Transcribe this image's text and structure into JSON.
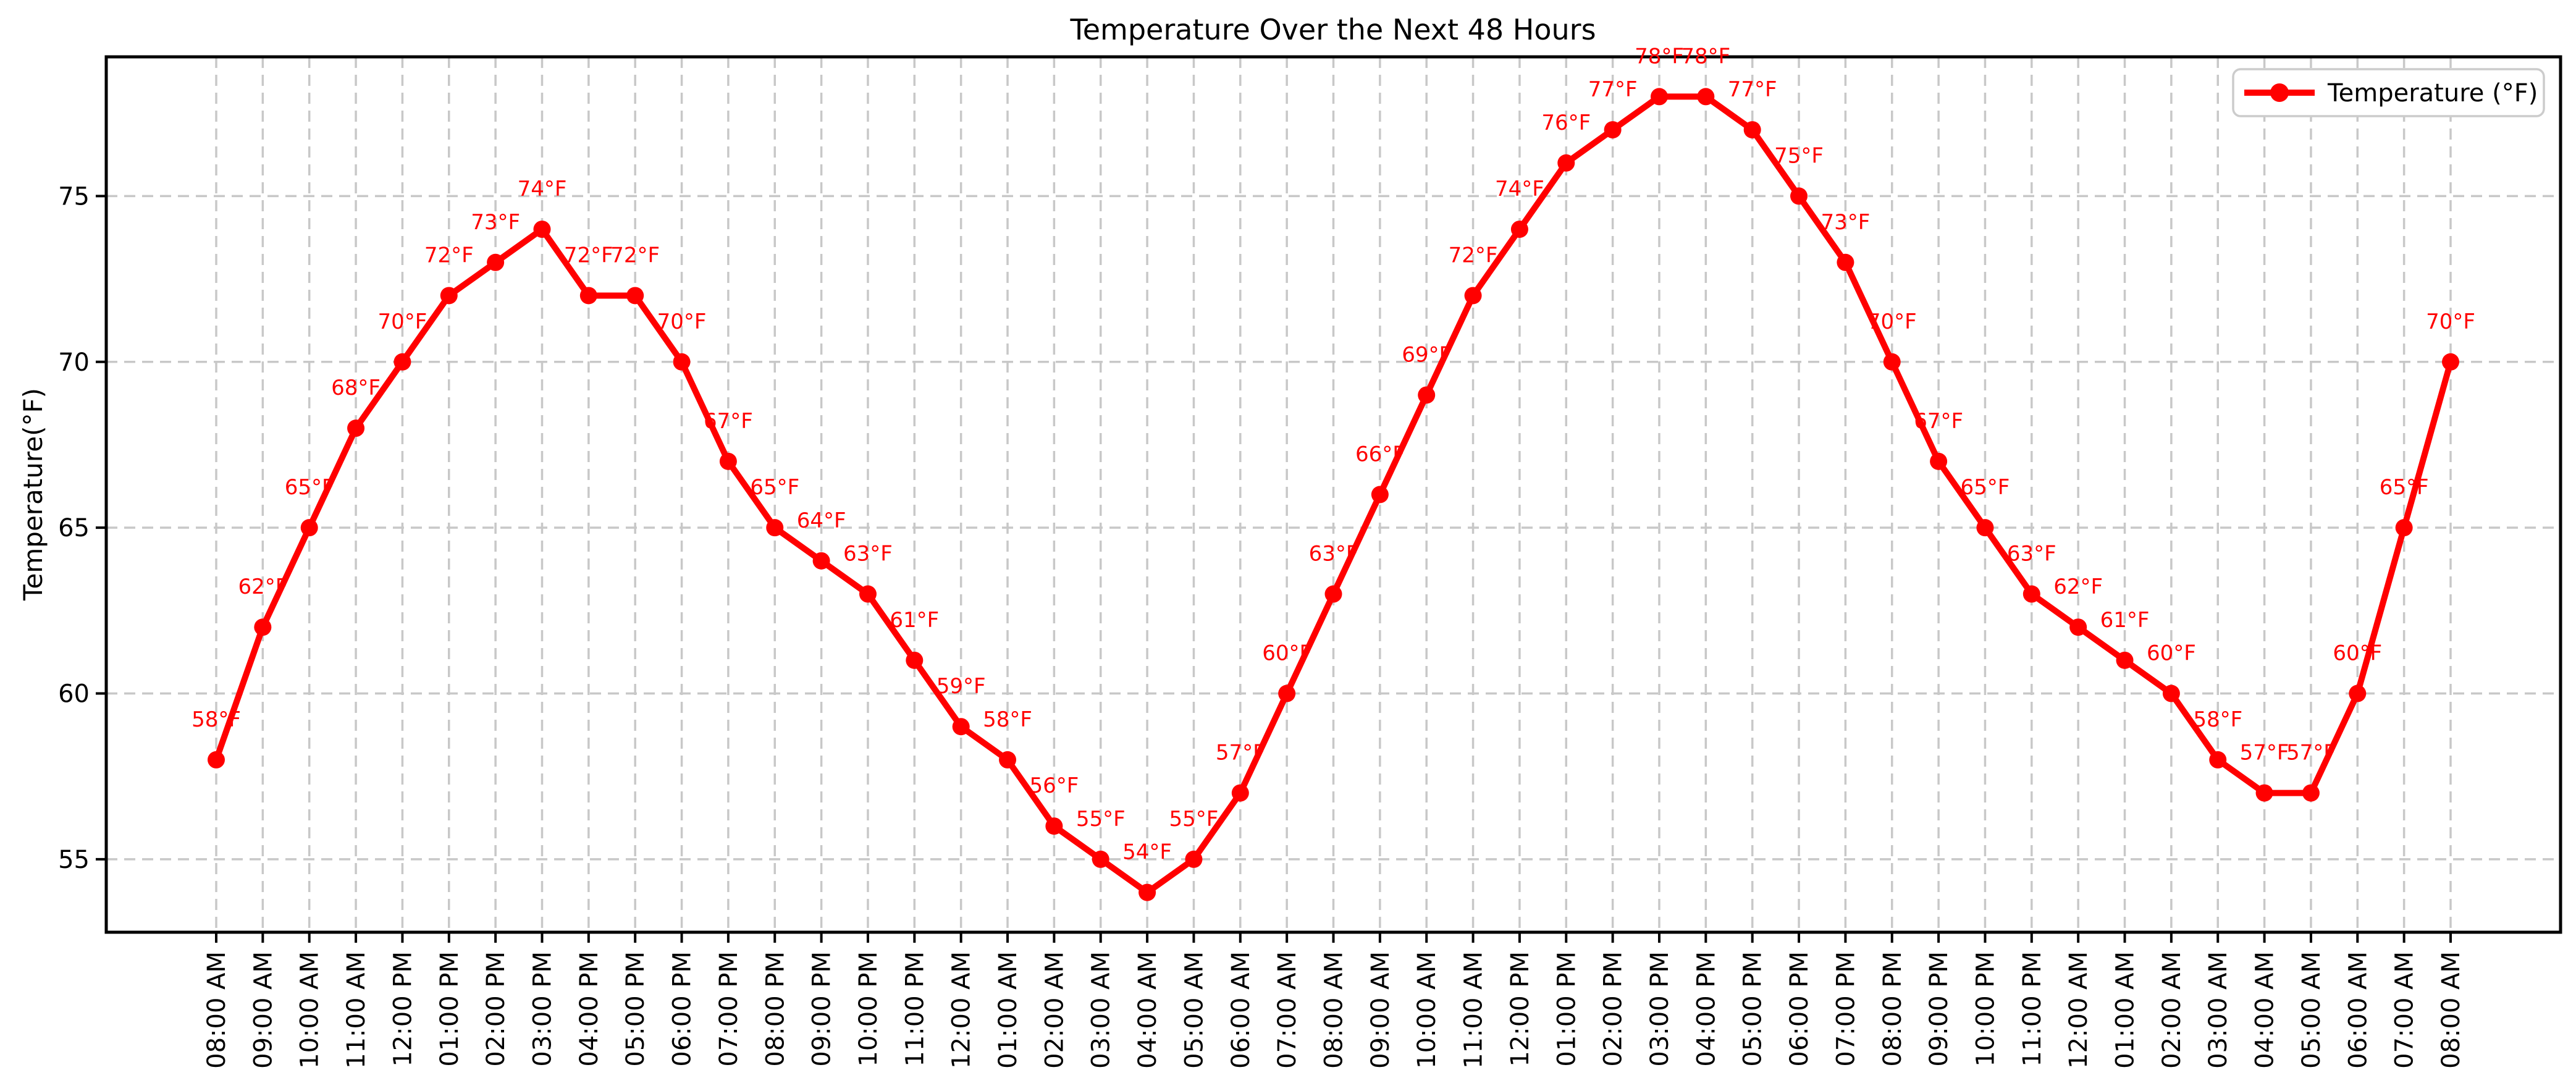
{
  "figure": {
    "title": "Temperature Over the Next 48 Hours",
    "background_color": "#ffffff"
  },
  "legend": {
    "label": "Temperature (°F)",
    "position": "upper right",
    "border_color": "#cccccc",
    "swatch_color": "#ff0000"
  },
  "chart_data": {
    "type": "line",
    "title": "Temperature Over the Next 48 Hours",
    "xlabel": "",
    "ylabel": "Temperature(°F)",
    "unit": "°F",
    "line_color": "#ff0000",
    "label_color": "#ff0000",
    "marker": "circle",
    "grid": {
      "visible": true,
      "style": "dashed",
      "color": "#c8c8c8"
    },
    "legend_position": "upper right",
    "ylim": [
      52.8,
      79.2
    ],
    "yticks": [
      55,
      60,
      65,
      70,
      75
    ],
    "ytick_labels": [
      "55",
      "60",
      "65",
      "70",
      "75"
    ],
    "categories": [
      "08:00 AM",
      "09:00 AM",
      "10:00 AM",
      "11:00 AM",
      "12:00 PM",
      "01:00 PM",
      "02:00 PM",
      "03:00 PM",
      "04:00 PM",
      "05:00 PM",
      "06:00 PM",
      "07:00 PM",
      "08:00 PM",
      "09:00 PM",
      "10:00 PM",
      "11:00 PM",
      "12:00 AM",
      "01:00 AM",
      "02:00 AM",
      "03:00 AM",
      "04:00 AM",
      "05:00 AM",
      "06:00 AM",
      "07:00 AM",
      "08:00 AM",
      "09:00 AM",
      "10:00 AM",
      "11:00 AM",
      "12:00 PM",
      "01:00 PM",
      "02:00 PM",
      "03:00 PM",
      "04:00 PM",
      "05:00 PM",
      "06:00 PM",
      "07:00 PM",
      "08:00 PM",
      "09:00 PM",
      "10:00 PM",
      "11:00 PM",
      "12:00 AM",
      "01:00 AM",
      "02:00 AM",
      "03:00 AM",
      "04:00 AM",
      "05:00 AM",
      "06:00 AM",
      "07:00 AM",
      "08:00 AM"
    ],
    "series": [
      {
        "name": "Temperature (°F)",
        "values": [
          58,
          62,
          65,
          68,
          70,
          72,
          73,
          74,
          72,
          72,
          70,
          67,
          65,
          64,
          63,
          61,
          59,
          58,
          56,
          55,
          54,
          55,
          57,
          60,
          63,
          66,
          69,
          72,
          74,
          76,
          77,
          78,
          78,
          77,
          75,
          73,
          70,
          67,
          65,
          63,
          62,
          61,
          60,
          58,
          57,
          57,
          60,
          65,
          70
        ]
      }
    ],
    "point_labels": [
      "58°F",
      "62°F",
      "65°F",
      "68°F",
      "70°F",
      "72°F",
      "73°F",
      "74°F",
      "72°F",
      "72°F",
      "70°F",
      "67°F",
      "65°F",
      "64°F",
      "63°F",
      "61°F",
      "59°F",
      "58°F",
      "56°F",
      "55°F",
      "54°F",
      "55°F",
      "57°F",
      "60°F",
      "63°F",
      "66°F",
      "69°F",
      "72°F",
      "74°F",
      "76°F",
      "77°F",
      "78°F",
      "78°F",
      "77°F",
      "75°F",
      "73°F",
      "70°F",
      "67°F",
      "65°F",
      "63°F",
      "62°F",
      "61°F",
      "60°F",
      "58°F",
      "57°F",
      "57°F",
      "60°F",
      "65°F",
      "70°F"
    ]
  }
}
